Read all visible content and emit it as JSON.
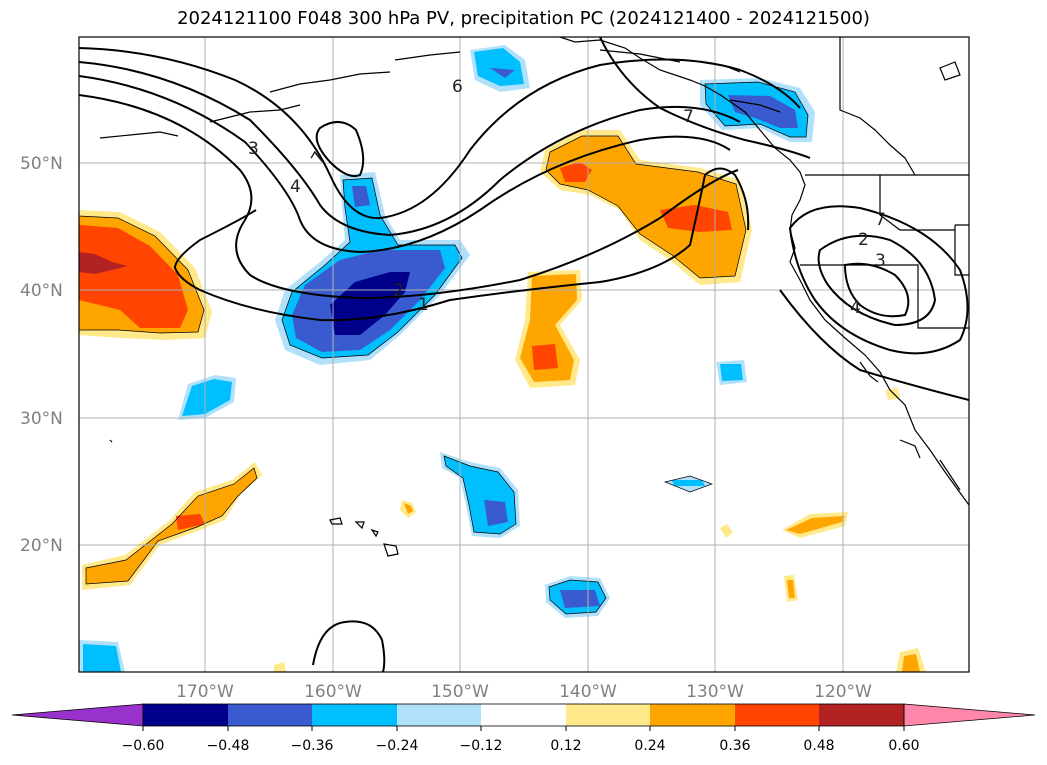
{
  "title": "2024121100 F048 300 hPa PV, precipitation PC (2024121400 - 2024121500)",
  "map": {
    "lat_labels": [
      "50°N",
      "40°N",
      "30°N",
      "20°N"
    ],
    "lon_labels": [
      "170°W",
      "160°W",
      "150°W",
      "140°W",
      "130°W",
      "120°W"
    ],
    "contour_labels": [
      "6",
      "7",
      "3",
      "4",
      "7",
      "2",
      "1",
      "7",
      "2",
      "3",
      "4"
    ]
  },
  "colorbar": {
    "ticks": [
      "−0.60",
      "−0.48",
      "−0.36",
      "−0.24",
      "−0.12",
      "0.12",
      "0.24",
      "0.36",
      "0.48",
      "0.60"
    ],
    "colors": [
      "#9932cc",
      "#00008b",
      "#3a5bd0",
      "#00bfff",
      "#b0e0fa",
      "#ffffff",
      "#ffe98a",
      "#ffa500",
      "#ff4500",
      "#b22222",
      "#ff88aa"
    ]
  },
  "colors": {
    "neg_dark": "#00008b",
    "neg_mid": "#3a5bd0",
    "neg_light": "#00bfff",
    "neg_pale": "#b0e0fa",
    "pos_pale": "#ffe98a",
    "pos_light": "#ffa500",
    "pos_mid": "#ff4500",
    "pos_dark": "#b22222",
    "grid": "#b0b0b0"
  }
}
